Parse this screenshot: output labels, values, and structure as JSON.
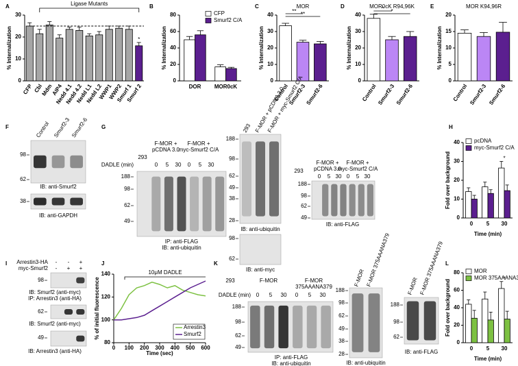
{
  "panel_labels": [
    "A",
    "B",
    "C",
    "D",
    "E",
    "F",
    "G",
    "H",
    "I",
    "J",
    "K",
    "L"
  ],
  "chart_data": [
    {
      "type": "bar",
      "ylabel": "% Internalization",
      "group_label": "Ligase Mutants",
      "categories": [
        "CFP",
        "Cbl",
        "Mdm",
        "AIP4",
        "Nedd 4.1",
        "Nedd 4.2",
        "Nedd L1",
        "Nedd L2",
        "WWP1",
        "WWP2",
        "Smurf 1",
        "Smurf 2"
      ],
      "values": [
        25,
        21.5,
        25.5,
        19.5,
        23.5,
        23,
        20.5,
        21,
        23.5,
        24,
        23.5,
        16
      ],
      "errors": [
        1.5,
        2,
        1.5,
        1.5,
        1,
        1.5,
        1,
        1.5,
        1.5,
        1,
        1.5,
        1.5
      ],
      "colors": [
        "#a6a6a6",
        "#a6a6a6",
        "#a6a6a6",
        "#a6a6a6",
        "#a6a6a6",
        "#a6a6a6",
        "#a6a6a6",
        "#a6a6a6",
        "#a6a6a6",
        "#a6a6a6",
        "#a6a6a6",
        "#5b1f8f"
      ],
      "reference_line": 25,
      "annotations": [
        "*"
      ],
      "ylim": [
        0,
        30
      ],
      "yticks": [
        0,
        10,
        20,
        30
      ]
    },
    {
      "type": "bar",
      "ylabel": "% Internalization",
      "categories": [
        "DOR",
        "MOR0cK"
      ],
      "series": [
        {
          "name": "CFP",
          "color": "#ffffff",
          "values": [
            50,
            17
          ],
          "errors": [
            4,
            2.5
          ]
        },
        {
          "name": "Smurf2 C/A",
          "color": "#5b1f8f",
          "values": [
            56,
            15
          ],
          "errors": [
            5,
            1.5
          ]
        }
      ],
      "legend": "upper right",
      "ylim": [
        0,
        80
      ],
      "yticks": [
        0,
        20,
        40,
        60,
        80
      ]
    },
    {
      "type": "bar",
      "title": "MOR",
      "ylabel": "% Internalization",
      "categories": [
        "Control",
        "Smurf2-3",
        "Smurf2-6"
      ],
      "values": [
        33.5,
        23.5,
        22.5
      ],
      "errors": [
        1.5,
        1.2,
        1.5
      ],
      "colors": [
        "#ffffff",
        "#bb86f5",
        "#5b1f8f"
      ],
      "annotations": [
        "**",
        "**"
      ],
      "ylim": [
        0,
        40
      ],
      "yticks": [
        0,
        10,
        20,
        30,
        40
      ]
    },
    {
      "type": "bar",
      "title": "MOR0cK R94,96K",
      "ylabel": "% Internalization",
      "categories": [
        "Control",
        "Smurf2-3",
        "Smurf2-6"
      ],
      "values": [
        38,
        25,
        27
      ],
      "errors": [
        2.5,
        2,
        3
      ],
      "colors": [
        "#ffffff",
        "#bb86f5",
        "#5b1f8f"
      ],
      "annotations": [
        "*",
        "*"
      ],
      "ylim": [
        0,
        40
      ],
      "yticks": [
        0,
        10,
        20,
        30,
        40
      ]
    },
    {
      "type": "bar",
      "title": "MOR K94,96R",
      "ylabel": "% Internalization",
      "categories": [
        "Control",
        "Smurf2-3",
        "Smurf2-6"
      ],
      "values": [
        14.5,
        13.5,
        14.8
      ],
      "errors": [
        1,
        1.2,
        3
      ],
      "colors": [
        "#ffffff",
        "#bb86f5",
        "#5b1f8f"
      ],
      "ylim": [
        0,
        20
      ],
      "yticks": [
        0,
        5,
        10,
        15,
        20
      ]
    },
    {
      "type": "bar",
      "ylabel": "Fold over background",
      "xlabel": "Time (min)",
      "categories": [
        0,
        5,
        30
      ],
      "series": [
        {
          "name": "pcDNA",
          "color": "#ffffff",
          "values": [
            14,
            16.5,
            26.5
          ],
          "errors": [
            2,
            2.5,
            3.5
          ]
        },
        {
          "name": "myc-Smurf2 C/A",
          "color": "#5b1f8f",
          "values": [
            10,
            13,
            14.5
          ],
          "errors": [
            2,
            2,
            3
          ]
        }
      ],
      "legend": "upper left",
      "annotations": [
        "*"
      ],
      "ylim": [
        0,
        40
      ],
      "yticks": [
        0,
        10,
        20,
        30,
        40
      ]
    },
    {
      "type": "line",
      "ylabel": "% of initial fluorescence",
      "xlabel": "Time (sec)",
      "annotation": "10μM DADLE",
      "x": [
        0,
        50,
        100,
        150,
        200,
        250,
        300,
        350,
        400,
        450,
        500,
        550,
        600
      ],
      "series": [
        {
          "name": "Arrestin3",
          "color": "#7dc142",
          "values": [
            100,
            110,
            122,
            128,
            130,
            133,
            131,
            128,
            130,
            126,
            124,
            122,
            121
          ]
        },
        {
          "name": "Smurf2",
          "color": "#5b1f8f",
          "values": [
            100,
            100,
            101,
            102,
            104,
            108,
            112,
            116,
            120,
            124,
            128,
            131,
            134
          ]
        }
      ],
      "legend": "lower right",
      "xlim": [
        0,
        600
      ],
      "xticks": [
        0,
        100,
        200,
        300,
        400,
        500,
        600
      ],
      "ylim": [
        80,
        140
      ],
      "yticks": [
        80,
        100,
        120,
        140
      ]
    },
    {
      "type": "bar",
      "ylabel": "Fold over background",
      "xlabel": "Time (min)",
      "categories": [
        0,
        5,
        30
      ],
      "series": [
        {
          "name": "MOR",
          "color": "#ffffff",
          "values": [
            44,
            50,
            62
          ],
          "errors": [
            5,
            8,
            8
          ]
        },
        {
          "name": "MOR 375AAANA379",
          "color": "#7dc142",
          "values": [
            28,
            26,
            27
          ],
          "errors": [
            9,
            9,
            9
          ]
        }
      ],
      "legend": "upper left",
      "annotations": [
        "*"
      ],
      "ylim": [
        0,
        80
      ],
      "yticks": [
        0,
        20,
        40,
        60,
        80
      ]
    }
  ],
  "blots": {
    "F": {
      "columns": [
        "Control",
        "Smurf2-3",
        "Smurf2-6"
      ],
      "markers_1": [
        98,
        62
      ],
      "caption_1": "IB: anti-Smurf2",
      "markers_2": [
        38
      ],
      "caption_2": "IB: anti-GAPDH"
    },
    "G": {
      "lane": "293",
      "group_1": [
        "F-MOR +",
        "pCDNA 3.0"
      ],
      "group_2": [
        "F-MOR +",
        "myc-Smurf2 C/A"
      ],
      "time_label": "DADLE (min)",
      "times": [
        0,
        5,
        30,
        0,
        5,
        30
      ],
      "markers": [
        188,
        98,
        62,
        49
      ],
      "captions": [
        "IP: anti-FLAG",
        "IB: anti-ubiquitin"
      ]
    },
    "G_mid": {
      "columns": [
        "293",
        "F-MOR + pCDNA 3.0",
        "F-MOR + myc-Smurf2 C/A"
      ],
      "markers": [
        188,
        98,
        62,
        49,
        38,
        28
      ],
      "caption": "IB: anti-ubiquitin",
      "myc_markers": [
        98,
        62
      ],
      "myc_caption": "IB: anti-myc"
    },
    "G_right": {
      "lane": "293",
      "group_1": [
        "F-MOR +",
        "pCDNA 3.0"
      ],
      "group_2": [
        "F-MOR +",
        "myc-Smurf2 C/A"
      ],
      "times": [
        0,
        5,
        30,
        0,
        5,
        30
      ],
      "markers": [
        188,
        98,
        62,
        49
      ],
      "caption": "IB: anti-FLAG"
    },
    "I": {
      "rows": [
        "Arrestin3-HA",
        "myc-Smurf2"
      ],
      "signs": [
        [
          "-",
          "-",
          "+"
        ],
        [
          "-",
          "+",
          "+"
        ]
      ],
      "markers": [
        98,
        62,
        49
      ],
      "captions": [
        "IB: Smurf2 (anti-myc)",
        "IP: Arrestin3 (anti-HA)",
        "IB: Smurf2 (anti-myc)",
        "IB: Arrestin3 (anti-HA)"
      ]
    },
    "K": {
      "lane": "293",
      "group_1": [
        "F-MOR"
      ],
      "group_2": [
        "F-MOR",
        "375AAANA379"
      ],
      "time_label": "DADLE (min)",
      "times": [
        0,
        5,
        30,
        0,
        5,
        30
      ],
      "markers": [
        188,
        98,
        62,
        49
      ],
      "captions": [
        "IP: anti-FLAG",
        "IB: anti-ubiquitin"
      ]
    },
    "K_mid": {
      "columns": [
        "F-MOR",
        "F-MOR 375AAANA379"
      ],
      "markers": [
        188,
        98,
        62,
        49,
        38,
        28
      ],
      "caption": "IB: anti-ubiquitin"
    },
    "K_right": {
      "columns": [
        "F-MOR",
        "F-MOR 375AAANA379"
      ],
      "markers": [
        188,
        98,
        62
      ],
      "caption": "IB: anti-FLAG"
    }
  }
}
